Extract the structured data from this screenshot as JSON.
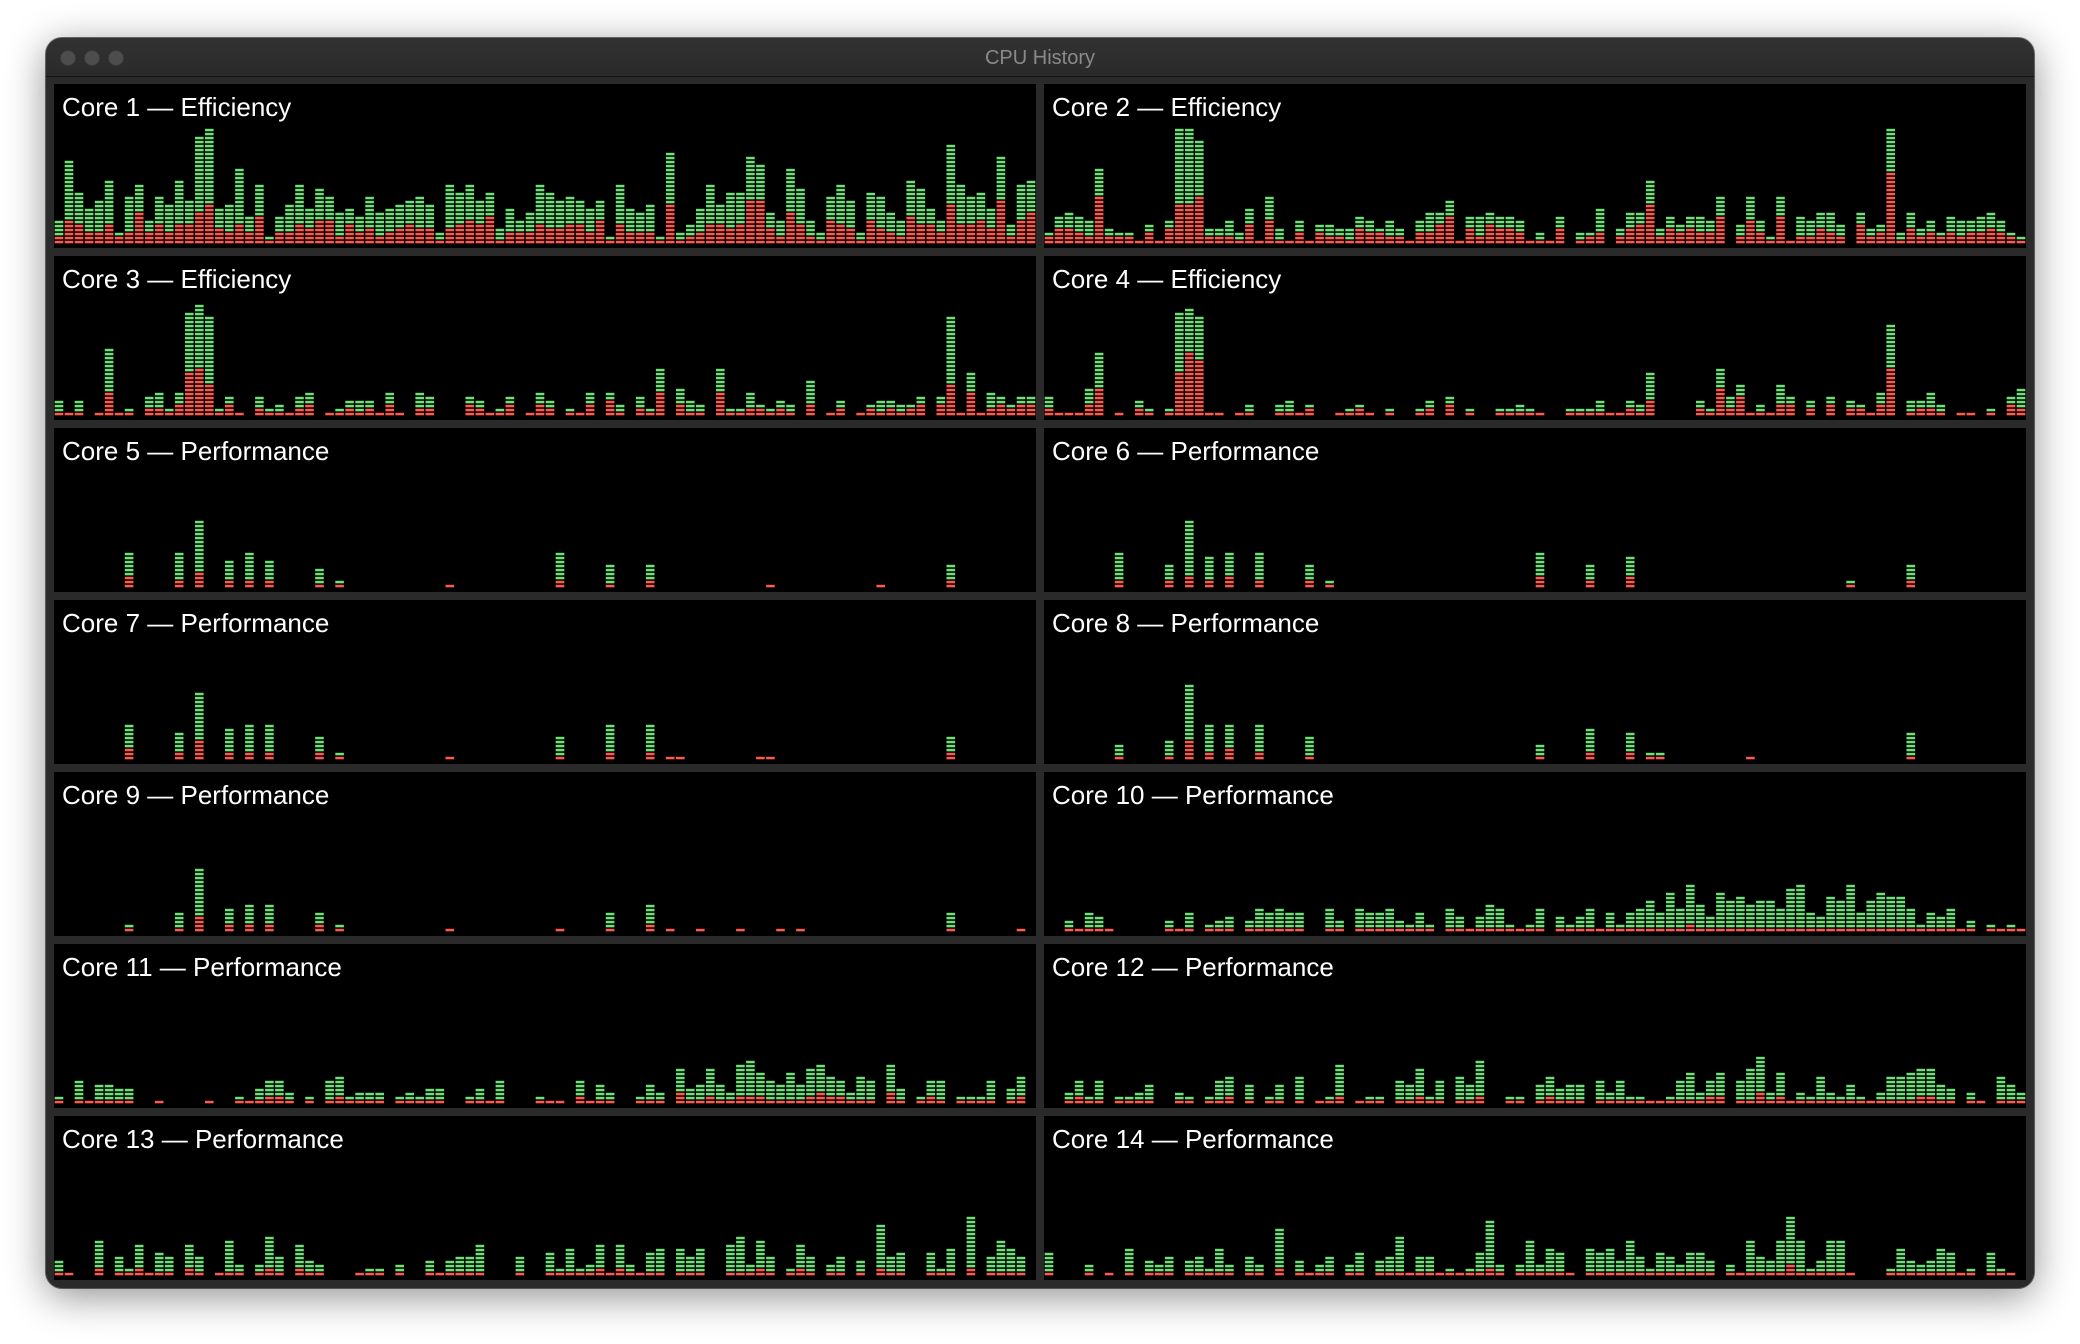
{
  "window": {
    "title": "CPU History"
  },
  "colors": {
    "user": "#6fe07a",
    "system": "#ff5a4e",
    "background": "#000000"
  },
  "chart_data": [
    {
      "type": "bar",
      "name": "Core 1 — Efficiency",
      "seed": 11,
      "base": 0.28,
      "noise": 0.22,
      "sys": 0.45,
      "spikes": [
        [
          14,
          0.88
        ],
        [
          15,
          0.95
        ],
        [
          18,
          0.6
        ],
        [
          73,
          0.62
        ],
        [
          85,
          0.5
        ],
        [
          89,
          0.82
        ],
        [
          94,
          0.72
        ],
        [
          97,
          0.5
        ]
      ]
    },
    {
      "type": "bar",
      "name": "Core 2 — Efficiency",
      "seed": 23,
      "base": 0.14,
      "noise": 0.14,
      "sys": 0.55,
      "spikes": [
        [
          5,
          0.62
        ],
        [
          13,
          0.92
        ],
        [
          14,
          0.95
        ],
        [
          15,
          0.85
        ],
        [
          22,
          0.4
        ],
        [
          60,
          0.5
        ],
        [
          67,
          0.4
        ],
        [
          73,
          0.38
        ],
        [
          84,
          0.95
        ]
      ]
    },
    {
      "type": "bar",
      "name": "Core 3 — Efficiency",
      "seed": 37,
      "base": 0.08,
      "noise": 0.13,
      "sys": 0.5,
      "spikes": [
        [
          5,
          0.55
        ],
        [
          13,
          0.85
        ],
        [
          14,
          0.9
        ],
        [
          15,
          0.8
        ],
        [
          60,
          0.4
        ],
        [
          66,
          0.38
        ],
        [
          89,
          0.82
        ],
        [
          91,
          0.35
        ]
      ]
    },
    {
      "type": "bar",
      "name": "Core 4 — Efficiency",
      "seed": 41,
      "base": 0.05,
      "noise": 0.11,
      "sys": 0.5,
      "spikes": [
        [
          5,
          0.5
        ],
        [
          13,
          0.85
        ],
        [
          14,
          0.88
        ],
        [
          15,
          0.82
        ],
        [
          60,
          0.35
        ],
        [
          67,
          0.38
        ],
        [
          84,
          0.75
        ]
      ]
    },
    {
      "type": "bar",
      "name": "Core 5 — Performance",
      "seed": 53,
      "base": 0.0,
      "noise": 0.0,
      "sys": 0.3,
      "spikes": [
        [
          7,
          0.28
        ],
        [
          12,
          0.3
        ],
        [
          14,
          0.55
        ],
        [
          17,
          0.22
        ],
        [
          19,
          0.3
        ],
        [
          21,
          0.22
        ],
        [
          26,
          0.15
        ],
        [
          28,
          0.08
        ],
        [
          39,
          0.04
        ],
        [
          50,
          0.3
        ],
        [
          55,
          0.2
        ],
        [
          59,
          0.2
        ],
        [
          71,
          0.04
        ],
        [
          82,
          0.03
        ],
        [
          89,
          0.18
        ]
      ]
    },
    {
      "type": "bar",
      "name": "Core 6 — Performance",
      "seed": 61,
      "base": 0.0,
      "noise": 0.0,
      "sys": 0.3,
      "spikes": [
        [
          7,
          0.28
        ],
        [
          12,
          0.18
        ],
        [
          14,
          0.55
        ],
        [
          16,
          0.25
        ],
        [
          18,
          0.28
        ],
        [
          21,
          0.28
        ],
        [
          26,
          0.18
        ],
        [
          28,
          0.05
        ],
        [
          49,
          0.28
        ],
        [
          54,
          0.2
        ],
        [
          58,
          0.26
        ],
        [
          80,
          0.08
        ],
        [
          86,
          0.18
        ]
      ]
    },
    {
      "type": "bar",
      "name": "Core 7 — Performance",
      "seed": 73,
      "base": 0.0,
      "noise": 0.0,
      "sys": 0.3,
      "spikes": [
        [
          7,
          0.28
        ],
        [
          12,
          0.22
        ],
        [
          14,
          0.55
        ],
        [
          17,
          0.25
        ],
        [
          19,
          0.28
        ],
        [
          21,
          0.28
        ],
        [
          26,
          0.18
        ],
        [
          28,
          0.05
        ],
        [
          39,
          0.03
        ],
        [
          50,
          0.2
        ],
        [
          55,
          0.28
        ],
        [
          59,
          0.28
        ],
        [
          61,
          0.03
        ],
        [
          62,
          0.03
        ],
        [
          70,
          0.03
        ],
        [
          71,
          0.03
        ],
        [
          89,
          0.2
        ]
      ]
    },
    {
      "type": "bar",
      "name": "Core 8 — Performance",
      "seed": 79,
      "base": 0.0,
      "noise": 0.0,
      "sys": 0.3,
      "spikes": [
        [
          7,
          0.12
        ],
        [
          12,
          0.15
        ],
        [
          14,
          0.6
        ],
        [
          16,
          0.28
        ],
        [
          18,
          0.28
        ],
        [
          21,
          0.28
        ],
        [
          26,
          0.18
        ],
        [
          49,
          0.13
        ],
        [
          54,
          0.25
        ],
        [
          58,
          0.22
        ],
        [
          60,
          0.06
        ],
        [
          61,
          0.08
        ],
        [
          70,
          0.03
        ],
        [
          86,
          0.22
        ]
      ]
    },
    {
      "type": "bar",
      "name": "Core 9 — Performance",
      "seed": 83,
      "base": 0.0,
      "noise": 0.0,
      "sys": 0.3,
      "spikes": [
        [
          7,
          0.06
        ],
        [
          12,
          0.15
        ],
        [
          14,
          0.5
        ],
        [
          17,
          0.2
        ],
        [
          19,
          0.22
        ],
        [
          21,
          0.22
        ],
        [
          26,
          0.17
        ],
        [
          28,
          0.06
        ],
        [
          39,
          0.03
        ],
        [
          50,
          0.03
        ],
        [
          55,
          0.15
        ],
        [
          59,
          0.22
        ],
        [
          61,
          0.03
        ],
        [
          64,
          0.03
        ],
        [
          68,
          0.03
        ],
        [
          72,
          0.03
        ],
        [
          74,
          0.03
        ],
        [
          89,
          0.15
        ],
        [
          96,
          0.03
        ]
      ]
    },
    {
      "type": "bar",
      "name": "Core 10 — Performance",
      "seed": 97,
      "base": 0.1,
      "noise": 0.1,
      "sys": 0.12,
      "gapRate": 0.12,
      "bump": [
        [
          60,
          85,
          0.14
        ]
      ],
      "spikes": [
        [
          67,
          0.33
        ]
      ]
    },
    {
      "type": "bar",
      "name": "Core 11 — Performance",
      "seed": 101,
      "base": 0.08,
      "noise": 0.14,
      "sys": 0.25,
      "gapRate": 0.14,
      "bump": [
        [
          64,
          80,
          0.12
        ]
      ],
      "spikes": [
        [
          69,
          0.34
        ]
      ]
    },
    {
      "type": "bar",
      "name": "Core 12 — Performance",
      "seed": 109,
      "base": 0.1,
      "noise": 0.13,
      "sys": 0.22,
      "gapRate": 0.12,
      "bump": [
        [
          58,
          88,
          0.06
        ]
      ],
      "spikes": [
        [
          70,
          0.28
        ]
      ]
    },
    {
      "type": "bar",
      "name": "Core 13 — Performance",
      "seed": 113,
      "base": 0.12,
      "noise": 0.16,
      "sys": 0.18,
      "gapRate": 0.12,
      "bump": [],
      "spikes": [
        [
          21,
          0.32
        ],
        [
          68,
          0.32
        ]
      ]
    },
    {
      "type": "bar",
      "name": "Core 14 — Performance",
      "seed": 127,
      "base": 0.12,
      "noise": 0.14,
      "sys": 0.16,
      "gapRate": 0.12,
      "bump": [
        [
          70,
          80,
          0.06
        ]
      ],
      "spikes": [
        [
          75,
          0.3
        ]
      ]
    }
  ]
}
